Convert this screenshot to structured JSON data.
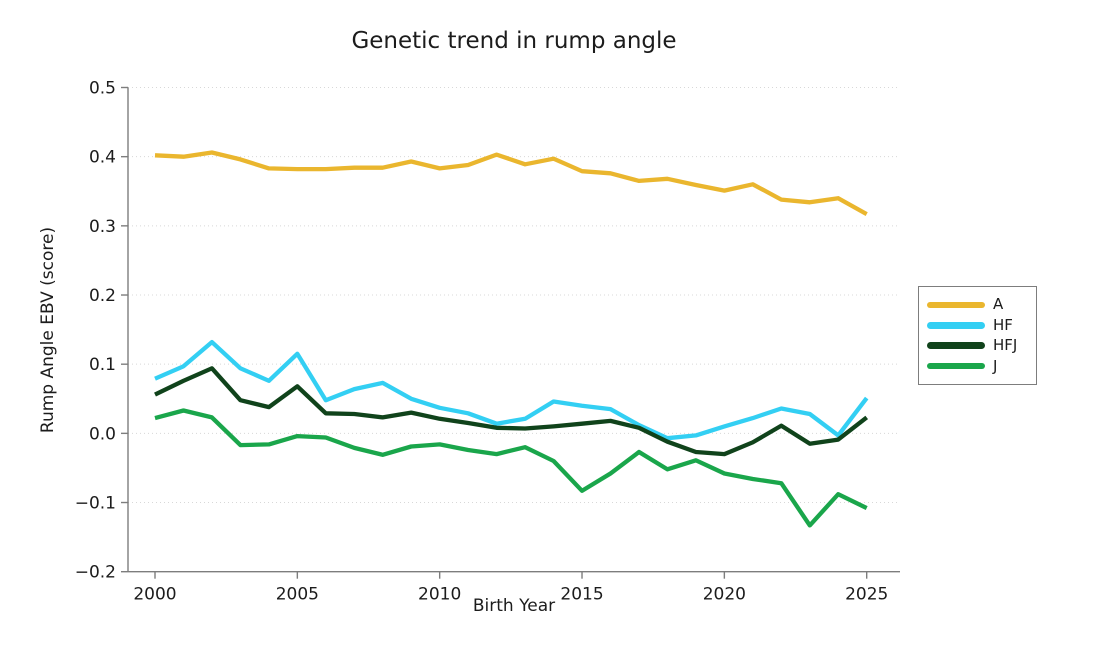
{
  "chart_data": {
    "type": "line",
    "title": "Genetic trend in rump angle",
    "xlabel": "Birth Year",
    "ylabel": "Rump Angle EBV (score)",
    "xlim": [
      2000,
      2025
    ],
    "ylim": [
      -0.2,
      0.5
    ],
    "grid": "faint dotted horizontal",
    "grid_y": [
      0.5,
      0.4,
      0.3,
      0.2,
      0.1,
      0.0,
      -0.1
    ],
    "legend_position": "outside-right",
    "x_tick_labels": [
      "2000",
      "2005",
      "2010",
      "2015",
      "2020",
      "2025"
    ],
    "x_tick_values": [
      2000,
      2005,
      2010,
      2015,
      2020,
      2025
    ],
    "y_tick_labels": [
      "0.5",
      "0.4",
      "0.3",
      "0.2",
      "0.1",
      "0.0",
      "−0.1",
      "−0.2"
    ],
    "y_tick_values": [
      0.5,
      0.4,
      0.3,
      0.2,
      0.1,
      0.0,
      -0.1,
      -0.2
    ],
    "x": [
      2000,
      2001,
      2002,
      2003,
      2004,
      2005,
      2006,
      2007,
      2008,
      2009,
      2010,
      2011,
      2012,
      2013,
      2014,
      2015,
      2016,
      2017,
      2018,
      2019,
      2020,
      2021,
      2022,
      2023,
      2024,
      2025
    ],
    "series": [
      {
        "name": "A",
        "color": "#EAB62E",
        "values": [
          0.402,
          0.4,
          0.406,
          0.396,
          0.383,
          0.382,
          0.382,
          0.384,
          0.384,
          0.393,
          0.383,
          0.388,
          0.403,
          0.389,
          0.397,
          0.379,
          0.376,
          0.365,
          0.368,
          0.359,
          0.351,
          0.36,
          0.338,
          0.334,
          0.34,
          0.317
        ]
      },
      {
        "name": "HF",
        "color": "#33CFF3",
        "values": [
          0.079,
          0.097,
          0.132,
          0.094,
          0.076,
          0.115,
          0.048,
          0.064,
          0.073,
          0.05,
          0.037,
          0.029,
          0.014,
          0.021,
          0.046,
          0.04,
          0.035,
          0.012,
          -0.007,
          -0.003,
          0.01,
          0.022,
          0.036,
          0.028,
          -0.003,
          0.051
        ]
      },
      {
        "name": "HFJ",
        "color": "#10431B",
        "values": [
          0.056,
          0.076,
          0.094,
          0.048,
          0.038,
          0.068,
          0.029,
          0.028,
          0.023,
          0.03,
          0.021,
          0.015,
          0.008,
          0.007,
          0.01,
          0.014,
          0.018,
          0.008,
          -0.012,
          -0.027,
          -0.03,
          -0.013,
          0.011,
          -0.015,
          -0.009,
          0.023
        ]
      },
      {
        "name": "J",
        "color": "#1AA64B",
        "values": [
          0.022,
          0.033,
          0.023,
          -0.017,
          -0.016,
          -0.004,
          -0.006,
          -0.021,
          -0.031,
          -0.019,
          -0.016,
          -0.024,
          -0.03,
          -0.02,
          -0.04,
          -0.083,
          -0.058,
          -0.027,
          -0.052,
          -0.039,
          -0.058,
          -0.066,
          -0.072,
          -0.133,
          -0.088,
          -0.108
        ]
      }
    ]
  }
}
